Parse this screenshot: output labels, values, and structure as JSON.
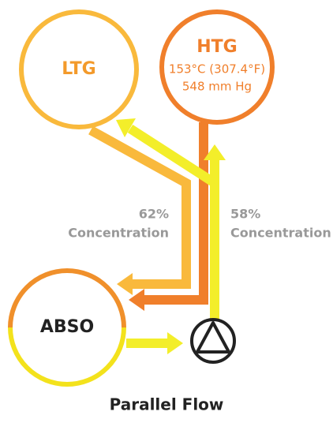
{
  "nodes": [
    {
      "label": "LTG"
    },
    {
      "label": "HTG",
      "lines": [
        "153°C (307.4°F)",
        "548 mm Hg"
      ]
    },
    {
      "label": "ABSO"
    }
  ],
  "flows": [
    {
      "percent": "62%",
      "label": "Concentration"
    },
    {
      "percent": "58%",
      "label": "Concentration"
    }
  ],
  "caption": "Parallel Flow"
}
